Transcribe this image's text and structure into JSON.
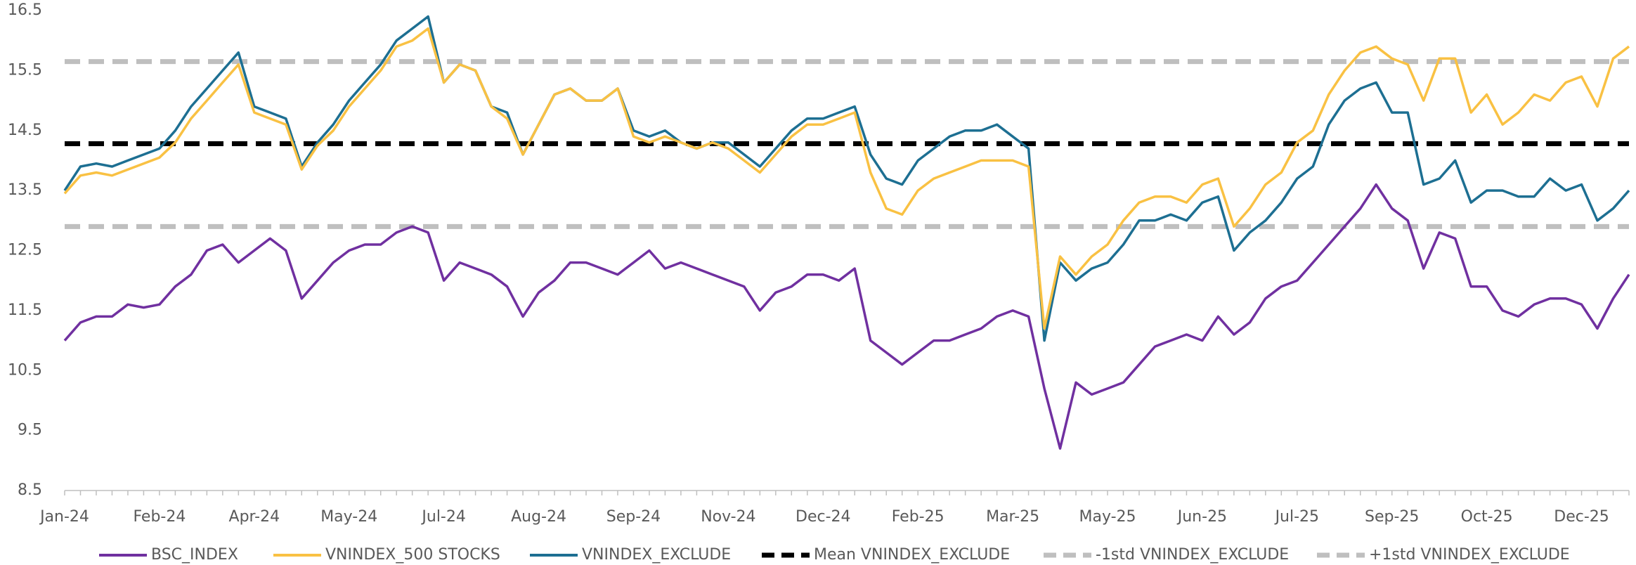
{
  "chart_data": {
    "type": "line",
    "categories": [
      "Jan-24",
      null,
      null,
      null,
      null,
      null,
      "Feb-24",
      null,
      null,
      null,
      null,
      null,
      "Apr-24",
      null,
      null,
      null,
      null,
      null,
      "May-24",
      null,
      null,
      null,
      null,
      null,
      "Jul-24",
      null,
      null,
      null,
      null,
      null,
      "Aug-24",
      null,
      null,
      null,
      null,
      null,
      "Sep-24",
      null,
      null,
      null,
      null,
      null,
      "Nov-24",
      null,
      null,
      null,
      null,
      null,
      "Dec-24",
      null,
      null,
      null,
      null,
      null,
      "Feb-25",
      null,
      null,
      null,
      null,
      null,
      "Mar-25",
      null,
      null,
      null,
      null,
      null,
      "May-25",
      null,
      null,
      null,
      null,
      null,
      "Jun-25",
      null,
      null,
      null,
      null,
      null,
      "Jul-25",
      null,
      null,
      null,
      null,
      null,
      "Sep-25",
      null,
      null,
      null,
      null,
      null,
      "Oct-25",
      null,
      null,
      null,
      null,
      null,
      "Dec-25",
      null,
      null,
      null
    ],
    "series": [
      {
        "name": "BSC_INDEX",
        "color": "#7030a0",
        "values": [
          11.0,
          11.3,
          11.4,
          11.4,
          11.6,
          11.55,
          11.6,
          11.9,
          12.1,
          12.5,
          12.6,
          12.3,
          12.5,
          12.7,
          12.5,
          11.7,
          12.0,
          12.3,
          12.5,
          12.6,
          12.6,
          12.8,
          12.9,
          12.8,
          12.0,
          12.3,
          12.2,
          12.1,
          11.9,
          11.4,
          11.8,
          12.0,
          12.3,
          12.3,
          12.2,
          12.1,
          12.3,
          12.5,
          12.2,
          12.3,
          12.2,
          12.1,
          12.0,
          11.9,
          11.5,
          11.8,
          11.9,
          12.1,
          12.1,
          12.0,
          12.2,
          11.0,
          10.8,
          10.6,
          10.8,
          11.0,
          11.0,
          11.1,
          11.2,
          11.4,
          11.5,
          11.4,
          10.2,
          9.2,
          10.3,
          10.1,
          10.2,
          10.3,
          10.6,
          10.9,
          11.0,
          11.1,
          11.0,
          11.4,
          11.1,
          11.3,
          11.7,
          11.9,
          12.0,
          12.3,
          12.6,
          12.9,
          13.2,
          13.6,
          13.2,
          13.0,
          12.2,
          12.8,
          12.7,
          11.9,
          11.9,
          11.5,
          11.4,
          11.6,
          11.7,
          11.7,
          11.6,
          11.2,
          11.7,
          12.1
        ]
      },
      {
        "name": "VNINDEX_500 STOCKS",
        "color": "#f9c143",
        "values": [
          13.45,
          13.75,
          13.8,
          13.75,
          13.85,
          13.95,
          14.05,
          14.3,
          14.7,
          15.0,
          15.3,
          15.6,
          14.8,
          14.7,
          14.6,
          13.85,
          14.25,
          14.5,
          14.9,
          15.2,
          15.5,
          15.9,
          16.0,
          16.2,
          15.3,
          15.6,
          15.5,
          14.9,
          14.7,
          14.1,
          14.6,
          15.1,
          15.2,
          15.0,
          15.0,
          15.2,
          14.4,
          14.3,
          14.4,
          14.3,
          14.2,
          14.3,
          14.2,
          14.0,
          13.8,
          14.1,
          14.4,
          14.6,
          14.6,
          14.7,
          14.8,
          13.8,
          13.2,
          13.1,
          13.5,
          13.7,
          13.8,
          13.9,
          14.0,
          14.0,
          14.0,
          13.9,
          11.2,
          12.4,
          12.1,
          12.4,
          12.6,
          13.0,
          13.3,
          13.4,
          13.4,
          13.3,
          13.6,
          13.7,
          12.9,
          13.2,
          13.6,
          13.8,
          14.3,
          14.5,
          15.1,
          15.5,
          15.8,
          15.9,
          15.7,
          15.6,
          15.0,
          15.7,
          15.7,
          14.8,
          15.1,
          14.6,
          14.8,
          15.1,
          15.0,
          15.3,
          15.4,
          14.9,
          15.7,
          15.9
        ]
      },
      {
        "name": "VNINDEX_EXCLUDE",
        "color": "#1d6f92",
        "values": [
          13.5,
          13.9,
          13.95,
          13.9,
          14.0,
          14.1,
          14.2,
          14.5,
          14.9,
          15.2,
          15.5,
          15.8,
          14.9,
          14.8,
          14.7,
          13.9,
          14.3,
          14.6,
          15.0,
          15.3,
          15.6,
          16.0,
          16.2,
          16.4,
          15.3,
          15.6,
          15.5,
          14.9,
          14.8,
          14.1,
          14.6,
          15.1,
          15.2,
          15.0,
          15.0,
          15.2,
          14.5,
          14.4,
          14.5,
          14.3,
          14.2,
          14.3,
          14.3,
          14.1,
          13.9,
          14.2,
          14.5,
          14.7,
          14.7,
          14.8,
          14.9,
          14.1,
          13.7,
          13.6,
          14.0,
          14.2,
          14.4,
          14.5,
          14.5,
          14.6,
          14.4,
          14.2,
          11.0,
          12.3,
          12.0,
          12.2,
          12.3,
          12.6,
          13.0,
          13.0,
          13.1,
          13.0,
          13.3,
          13.4,
          12.5,
          12.8,
          13.0,
          13.3,
          13.7,
          13.9,
          14.6,
          15.0,
          15.2,
          15.3,
          14.8,
          14.8,
          13.6,
          13.7,
          14.0,
          13.3,
          13.5,
          13.5,
          13.4,
          13.4,
          13.7,
          13.5,
          13.6,
          13.0,
          13.2,
          13.5
        ]
      },
      {
        "name": "Mean VNINDEX_EXCLUDE",
        "color": "#000000",
        "dashed": true,
        "value": 14.28
      },
      {
        "name": "-1std VNINDEX_EXCLUDE",
        "color": "#bfbfbf",
        "dashed": true,
        "value": 12.9
      },
      {
        "name": "+1std VNINDEX_EXCLUDE",
        "color": "#bfbfbf",
        "dashed": true,
        "value": 15.65
      }
    ],
    "ylim": [
      8.5,
      16.5
    ],
    "yticks": [
      8.5,
      9.5,
      10.5,
      11.5,
      12.5,
      13.5,
      14.5,
      15.5,
      16.5
    ],
    "grid": false,
    "legend": "bottom"
  }
}
